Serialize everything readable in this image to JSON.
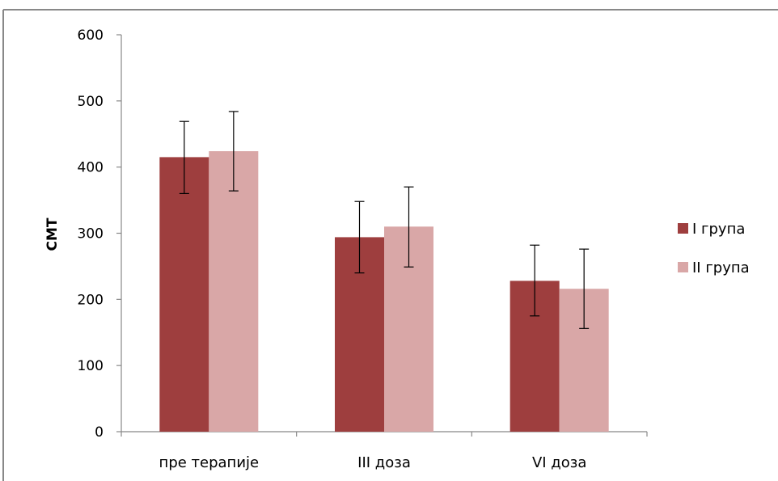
{
  "chart_data": {
    "type": "bar",
    "categories": [
      "пре терапије",
      "III доза",
      "VI доза"
    ],
    "series": [
      {
        "name": "I група",
        "values": [
          415,
          294,
          228
        ],
        "error_low": [
          360,
          240,
          175
        ],
        "error_high": [
          469,
          348,
          282
        ],
        "color": "#9e3e3e"
      },
      {
        "name": "II група",
        "values": [
          424,
          310,
          216
        ],
        "error_low": [
          364,
          249,
          156
        ],
        "error_high": [
          484,
          370,
          276
        ],
        "color": "#d9a7a7"
      }
    ],
    "title": "",
    "xlabel": "",
    "ylabel": "CMT",
    "ylim": [
      0,
      600
    ],
    "yticks": [
      "0",
      "100",
      "200",
      "300",
      "400",
      "500",
      "600"
    ],
    "grid": false,
    "legend": "right",
    "error_bars": true
  }
}
